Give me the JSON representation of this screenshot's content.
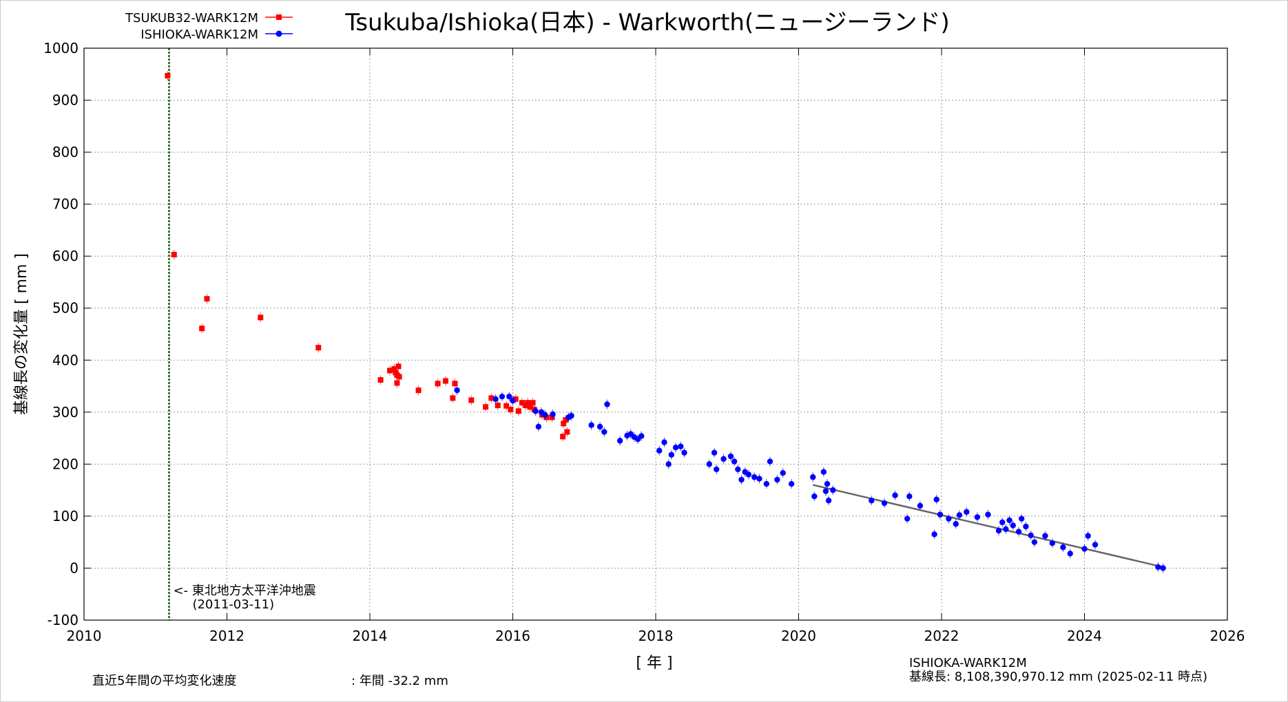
{
  "chart_data": {
    "type": "scatter",
    "title": "Tsukuba/Ishioka(日本) - Warkworth(ニュージーランド)",
    "xlabel": "[ 年 ]",
    "ylabel": "基線長の変化量 [ mm ]",
    "xlim": [
      2010,
      2026
    ],
    "ylim": [
      -100,
      1000
    ],
    "x_ticks": [
      "2010",
      "2012",
      "2014",
      "2016",
      "2018",
      "2020",
      "2022",
      "2024",
      "2026"
    ],
    "y_ticks": [
      "-100",
      "0",
      "100",
      "200",
      "300",
      "400",
      "500",
      "600",
      "700",
      "800",
      "900",
      "1000"
    ],
    "grid": true,
    "legend_position": "top-left",
    "series": [
      {
        "name": "TSUKUB32-WARK12M",
        "color": "#ff0000",
        "marker": "square",
        "points": [
          [
            2011.17,
            947
          ],
          [
            2011.26,
            603
          ],
          [
            2011.65,
            461
          ],
          [
            2011.72,
            518
          ],
          [
            2012.47,
            482
          ],
          [
            2013.28,
            424
          ],
          [
            2014.15,
            362
          ],
          [
            2014.28,
            380
          ],
          [
            2014.34,
            383
          ],
          [
            2014.36,
            376
          ],
          [
            2014.38,
            371
          ],
          [
            2014.38,
            356
          ],
          [
            2014.4,
            388
          ],
          [
            2014.41,
            368
          ],
          [
            2014.68,
            342
          ],
          [
            2014.95,
            355
          ],
          [
            2015.06,
            360
          ],
          [
            2015.16,
            327
          ],
          [
            2015.19,
            355
          ],
          [
            2015.42,
            323
          ],
          [
            2015.62,
            310
          ],
          [
            2015.7,
            327
          ],
          [
            2015.79,
            313
          ],
          [
            2015.91,
            312
          ],
          [
            2015.97,
            305
          ],
          [
            2016.04,
            325
          ],
          [
            2016.08,
            302
          ],
          [
            2016.13,
            318
          ],
          [
            2016.18,
            313
          ],
          [
            2016.21,
            318
          ],
          [
            2016.24,
            310
          ],
          [
            2016.28,
            318
          ],
          [
            2016.3,
            305
          ],
          [
            2016.41,
            295
          ],
          [
            2016.47,
            290
          ],
          [
            2016.55,
            290
          ],
          [
            2016.7,
            253
          ],
          [
            2016.71,
            278
          ],
          [
            2016.74,
            285
          ],
          [
            2016.76,
            262
          ]
        ]
      },
      {
        "name": "ISHIOKA-WARK12M",
        "color": "#0000ff",
        "marker": "circle",
        "points": [
          [
            2015.22,
            342
          ],
          [
            2015.76,
            325
          ],
          [
            2015.85,
            330
          ],
          [
            2015.95,
            330
          ],
          [
            2016.0,
            322
          ],
          [
            2016.32,
            302
          ],
          [
            2016.36,
            272
          ],
          [
            2016.4,
            300
          ],
          [
            2016.45,
            295
          ],
          [
            2016.56,
            296
          ],
          [
            2016.78,
            290
          ],
          [
            2016.82,
            293
          ],
          [
            2017.1,
            275
          ],
          [
            2017.22,
            272
          ],
          [
            2017.28,
            262
          ],
          [
            2017.32,
            315
          ],
          [
            2017.5,
            245
          ],
          [
            2017.6,
            255
          ],
          [
            2017.65,
            258
          ],
          [
            2017.7,
            252
          ],
          [
            2017.75,
            248
          ],
          [
            2017.8,
            254
          ],
          [
            2018.05,
            226
          ],
          [
            2018.12,
            242
          ],
          [
            2018.18,
            200
          ],
          [
            2018.22,
            218
          ],
          [
            2018.28,
            232
          ],
          [
            2018.35,
            234
          ],
          [
            2018.4,
            222
          ],
          [
            2018.75,
            200
          ],
          [
            2018.82,
            222
          ],
          [
            2018.85,
            190
          ],
          [
            2018.95,
            210
          ],
          [
            2019.05,
            215
          ],
          [
            2019.1,
            205
          ],
          [
            2019.15,
            190
          ],
          [
            2019.2,
            170
          ],
          [
            2019.25,
            185
          ],
          [
            2019.3,
            180
          ],
          [
            2019.38,
            175
          ],
          [
            2019.45,
            172
          ],
          [
            2019.55,
            162
          ],
          [
            2019.6,
            205
          ],
          [
            2019.7,
            170
          ],
          [
            2019.78,
            183
          ],
          [
            2019.9,
            162
          ],
          [
            2020.2,
            175
          ],
          [
            2020.22,
            138
          ],
          [
            2020.35,
            185
          ],
          [
            2020.38,
            148
          ],
          [
            2020.4,
            162
          ],
          [
            2020.42,
            130
          ],
          [
            2020.48,
            150
          ],
          [
            2021.02,
            130
          ],
          [
            2021.2,
            125
          ],
          [
            2021.35,
            140
          ],
          [
            2021.52,
            95
          ],
          [
            2021.55,
            138
          ],
          [
            2021.7,
            120
          ],
          [
            2021.9,
            65
          ],
          [
            2021.93,
            132
          ],
          [
            2021.98,
            103
          ],
          [
            2022.1,
            95
          ],
          [
            2022.2,
            85
          ],
          [
            2022.25,
            102
          ],
          [
            2022.35,
            108
          ],
          [
            2022.5,
            98
          ],
          [
            2022.65,
            103
          ],
          [
            2022.8,
            72
          ],
          [
            2022.85,
            88
          ],
          [
            2022.9,
            75
          ],
          [
            2022.95,
            92
          ],
          [
            2023.0,
            82
          ],
          [
            2023.08,
            70
          ],
          [
            2023.12,
            95
          ],
          [
            2023.18,
            80
          ],
          [
            2023.25,
            63
          ],
          [
            2023.3,
            50
          ],
          [
            2023.45,
            62
          ],
          [
            2023.55,
            48
          ],
          [
            2023.7,
            40
          ],
          [
            2023.8,
            28
          ],
          [
            2024.0,
            37
          ],
          [
            2024.05,
            62
          ],
          [
            2024.15,
            45
          ],
          [
            2025.03,
            2
          ],
          [
            2025.1,
            0
          ]
        ]
      }
    ],
    "trend_line": {
      "color": "#666666",
      "from": [
        2020.2,
        160
      ],
      "to": [
        2025.1,
        2
      ]
    },
    "event_line": {
      "x": 2011.19,
      "color": "#006600",
      "label": "<- 東北地方太平洋沖地震",
      "date": "(2011-03-11)"
    },
    "notes": {
      "rate_label": "直近5年間の平均変化速度",
      "rate_value": ": 年間 -32.2 mm",
      "baseline_name": "ISHIOKA-WARK12M",
      "baseline_length": "基線長: 8,108,390,970.12 mm (2025-02-11 時点)"
    }
  }
}
